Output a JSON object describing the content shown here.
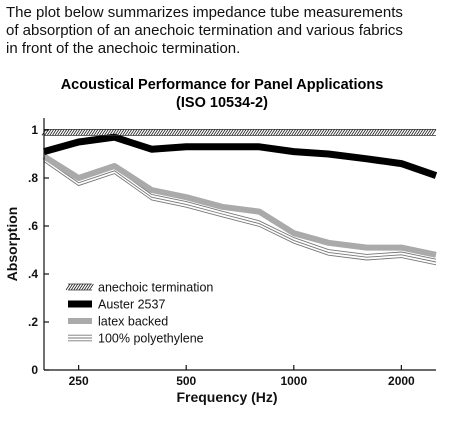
{
  "intro": {
    "lines": [
      "The plot below summarizes impedance tube measurements",
      "of absorption of an anechoic termination and various fabrics",
      "in front of the anechoic termination."
    ]
  },
  "chart_data": {
    "type": "line",
    "title_lines": [
      "Acoustical Performance for Panel Applications",
      "(ISO 10534-2)"
    ],
    "xlabel": "Frequency (Hz)",
    "ylabel": "Absorption",
    "x_scale": "log",
    "xlim": [
      200,
      2500
    ],
    "ylim": [
      0,
      1.05
    ],
    "x_ticks": [
      {
        "value": 250,
        "label": "250"
      },
      {
        "value": 500,
        "label": "500"
      },
      {
        "value": 1000,
        "label": "1000"
      },
      {
        "value": 2000,
        "label": "2000"
      }
    ],
    "y_ticks": [
      {
        "value": 0,
        "label": "0"
      },
      {
        "value": 0.2,
        "label": ".2"
      },
      {
        "value": 0.4,
        "label": ".4"
      },
      {
        "value": 0.6,
        "label": ".6"
      },
      {
        "value": 0.8,
        "label": ".8"
      },
      {
        "value": 1.0,
        "label": "1"
      }
    ],
    "x": [
      200,
      250,
      315,
      400,
      500,
      630,
      800,
      1000,
      1250,
      1600,
      2000,
      2500
    ],
    "series": [
      {
        "name": "anechoic termination",
        "style": "hatched",
        "color": "#333333",
        "values": [
          0.99,
          0.99,
          0.99,
          0.99,
          0.99,
          0.99,
          0.99,
          0.99,
          0.99,
          0.99,
          0.99,
          0.99
        ]
      },
      {
        "name": "Auster 2537",
        "style": "thick",
        "color": "#000000",
        "values": [
          0.91,
          0.95,
          0.97,
          0.92,
          0.93,
          0.93,
          0.93,
          0.91,
          0.9,
          0.88,
          0.86,
          0.81
        ]
      },
      {
        "name": "latex backed",
        "style": "gray",
        "color": "#aaaaaa",
        "values": [
          0.89,
          0.8,
          0.85,
          0.75,
          0.72,
          0.68,
          0.66,
          0.57,
          0.53,
          0.51,
          0.51,
          0.48
        ]
      },
      {
        "name": "100% polyethylene",
        "style": "triple",
        "color": "#888888",
        "values": [
          0.88,
          0.78,
          0.83,
          0.72,
          0.69,
          0.65,
          0.61,
          0.54,
          0.49,
          0.47,
          0.48,
          0.45
        ]
      }
    ],
    "grid": false,
    "legend_position": "lower-left"
  }
}
